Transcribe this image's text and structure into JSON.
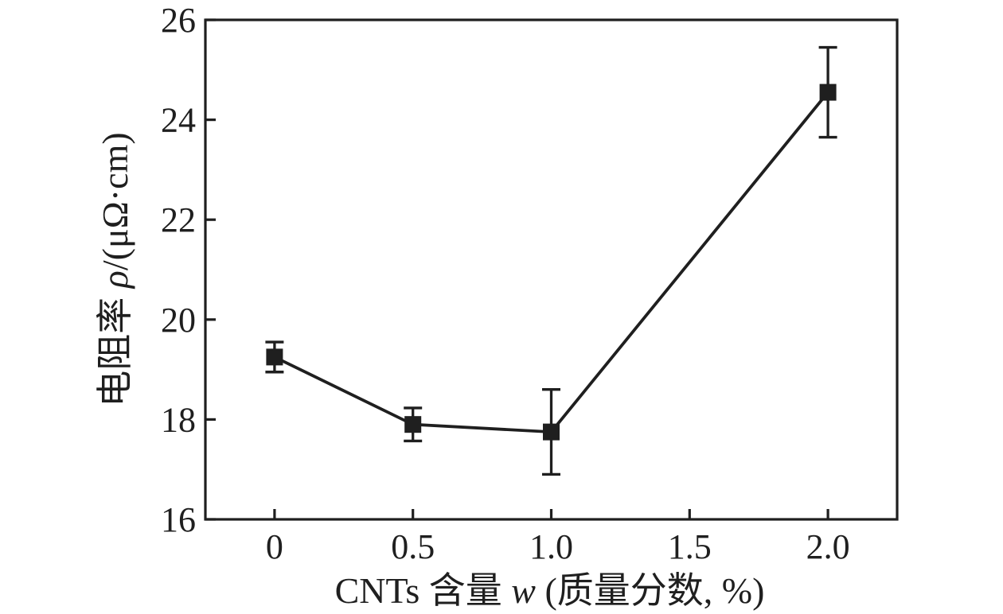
{
  "chart_data": {
    "type": "line",
    "title": "",
    "series": [
      {
        "name": "resistivity-vs-cnt-content",
        "x": [
          0,
          0.5,
          1.0,
          2.0
        ],
        "y": [
          19.25,
          17.9,
          17.75,
          24.55
        ],
        "yerr": [
          0.3,
          0.33,
          0.85,
          0.9
        ]
      }
    ],
    "xlabel": "CNTs 含量 w (质量分数, %)",
    "xlabel_parts": [
      {
        "text": "CNTs 含量 ",
        "italic": false
      },
      {
        "text": "w",
        "italic": true
      },
      {
        "text": " (质量分数, %)",
        "italic": false
      }
    ],
    "ylabel": "电阻率 ρ/(μΩ·cm)",
    "ylabel_parts": [
      {
        "text": "电阻率 ",
        "italic": false
      },
      {
        "text": "ρ",
        "italic": true
      },
      {
        "text": "/(μΩ·cm)",
        "italic": false
      }
    ],
    "xlim": [
      -0.25,
      2.25
    ],
    "ylim": [
      16,
      26
    ],
    "xticks": {
      "values": [
        0,
        0.5,
        1.0,
        1.5,
        2.0
      ],
      "labels": [
        "0",
        "0.5",
        "1.0",
        "1.5",
        "2.0"
      ]
    },
    "yticks": {
      "values": [
        16,
        18,
        20,
        22,
        24,
        26
      ],
      "labels": [
        "16",
        "18",
        "20",
        "22",
        "24",
        "26"
      ]
    },
    "grid": false,
    "legend": "none",
    "marker": "filled-square",
    "line_style": "solid",
    "colors": {
      "ink": "#1f1f1f",
      "background": "#ffffff"
    }
  }
}
